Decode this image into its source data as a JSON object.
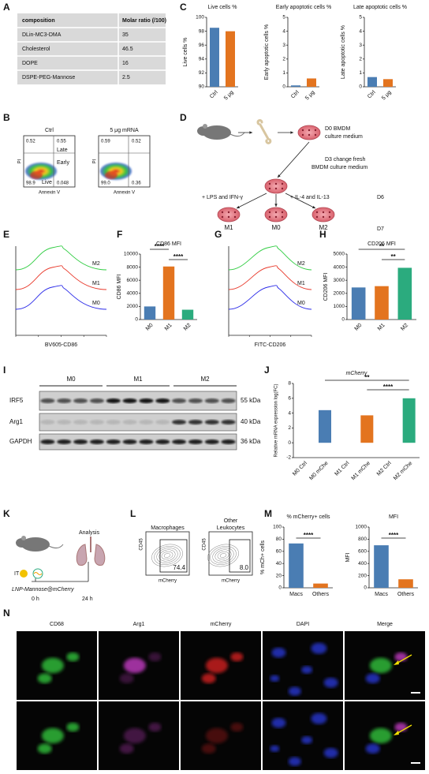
{
  "panel_labels": [
    "A",
    "B",
    "C",
    "D",
    "E",
    "F",
    "G",
    "H",
    "I",
    "J",
    "K",
    "L",
    "M",
    "N"
  ],
  "table": {
    "header": [
      "composition",
      "Molar ratio (/100)"
    ],
    "rows": [
      [
        "DLin-MC3-DMA",
        "35"
      ],
      [
        "Cholesterol",
        "46.5"
      ],
      [
        "DOPE",
        "16"
      ],
      [
        "DSPE-PEG-Mannose",
        "2.5"
      ]
    ]
  },
  "flow_b": {
    "titles": [
      "Ctrl",
      "5 μg mRNA"
    ],
    "quadrants": [
      [
        "0.52",
        "0.55",
        "98.9",
        "0.048"
      ],
      [
        "0.59",
        "0.52",
        "99.0",
        "0.36"
      ]
    ],
    "gates": [
      "Late",
      "Early",
      "Live"
    ],
    "y_axis": "PI",
    "x_axis": "Annexin V"
  },
  "diagram_d": {
    "step_d0": [
      "D0 BMDM",
      "culture medium"
    ],
    "step_d3": [
      "D3 change fresh",
      "BMDM culture medium"
    ],
    "treatments": [
      "+ LPS and IFN-γ",
      "+ IL-4 and IL-13"
    ],
    "days": [
      "D6",
      "D7"
    ],
    "groups": [
      "M1",
      "M0",
      "M2"
    ]
  },
  "histograms": [
    {
      "x_axis": "BV605-CD86",
      "labels": [
        "M2",
        "M1",
        "M0"
      ]
    },
    {
      "x_axis": "FITC-CD206",
      "labels": [
        "M2",
        "M1",
        "M0"
      ]
    }
  ],
  "blot": {
    "groups": [
      "M0",
      "M1",
      "M2"
    ],
    "proteins": [
      "IRF5",
      "Arg1",
      "GAPDH"
    ],
    "sizes": [
      "55 kDa",
      "40 kDa",
      "36 kDa"
    ]
  },
  "schematic_k": {
    "route": "IT",
    "endpoint": "Analysis",
    "agent": "LNP-Mannose@mCherry",
    "times": [
      "0 h",
      "24 h"
    ]
  },
  "flow_l": {
    "plots": [
      {
        "title": [
          "Macrophages"
        ],
        "gate": "74.4"
      },
      {
        "title": [
          "Other",
          "Leukocytes"
        ],
        "gate": "8.0"
      }
    ],
    "y_axis": "CD45",
    "x_axis": "mCherry"
  },
  "microscopy_n": {
    "channels": [
      "CD68",
      "Arg1",
      "mCherry",
      "DAPI",
      "Merge"
    ]
  },
  "chart_data": [
    {
      "type": "bar",
      "title": "Live cells %",
      "ylabel": "Live cells %",
      "categories": [
        "Ctrl",
        "5 μg"
      ],
      "values": [
        98.5,
        98
      ],
      "colors": [
        "#4a7db3",
        "#e3741f"
      ],
      "ylim": [
        90,
        100
      ],
      "yticks": [
        90,
        92,
        94,
        96,
        98,
        100
      ]
    },
    {
      "type": "bar",
      "title": "Early apoptotic cells %",
      "ylabel": "Early apoptotic cells %",
      "categories": [
        "Ctrl",
        "5 μg"
      ],
      "values": [
        0.1,
        0.6
      ],
      "colors": [
        "#4a7db3",
        "#e3741f"
      ],
      "ylim": [
        0,
        5
      ],
      "yticks": [
        0,
        1,
        2,
        3,
        4,
        5
      ]
    },
    {
      "type": "bar",
      "title": "Late apoptotic cells %",
      "ylabel": "Late apoptotic cells %",
      "categories": [
        "Ctrl",
        "5 μg"
      ],
      "values": [
        0.7,
        0.55
      ],
      "colors": [
        "#4a7db3",
        "#e3741f"
      ],
      "ylim": [
        0,
        5
      ],
      "yticks": [
        0,
        1,
        2,
        3,
        4,
        5
      ]
    },
    {
      "type": "bar",
      "title": "CD86 MFI",
      "ylabel": "CD86 MFI",
      "categories": [
        "M0",
        "M1",
        "M2"
      ],
      "values": [
        2000,
        8100,
        1500
      ],
      "colors": [
        "#4a7db3",
        "#e3741f",
        "#2bab7e"
      ],
      "ylim": [
        0,
        10000
      ],
      "yticks": [
        0,
        2000,
        4000,
        6000,
        8000,
        10000
      ],
      "annotations": [
        "****",
        "****"
      ]
    },
    {
      "type": "bar",
      "title": "CD206 MFI",
      "ylabel": "CD206 MFI",
      "categories": [
        "M0",
        "M1",
        "M2"
      ],
      "values": [
        2450,
        2550,
        3950
      ],
      "colors": [
        "#4a7db3",
        "#e3741f",
        "#2bab7e"
      ],
      "ylim": [
        0,
        5000
      ],
      "yticks": [
        0,
        1000,
        2000,
        3000,
        4000,
        5000
      ],
      "annotations": [
        "**",
        "**"
      ]
    },
    {
      "type": "bar",
      "title": "mCherry",
      "ylabel": "Relative mRNA expression log(FC)",
      "categories": [
        "M0 Ctrl",
        "M0 mChe",
        "M1 Ctrl",
        "M1 mChe",
        "M2 Ctrl",
        "M2 mChe"
      ],
      "values": [
        0,
        4.4,
        0,
        3.7,
        0,
        6
      ],
      "colors": [
        "#4a7db3",
        "#4a7db3",
        "#e3741f",
        "#e3741f",
        "#2bab7e",
        "#2bab7e"
      ],
      "ylim": [
        -2,
        8
      ],
      "yticks": [
        -2,
        0,
        2,
        4,
        6,
        8
      ],
      "annotations": [
        "**",
        "****"
      ]
    },
    {
      "type": "bar",
      "title": "% mCherry+ cells",
      "ylabel": "% mCh+ cells",
      "categories": [
        "Macs",
        "Others"
      ],
      "values": [
        73,
        7
      ],
      "colors": [
        "#4a7db3",
        "#e3741f"
      ],
      "ylim": [
        0,
        100
      ],
      "yticks": [
        0,
        20,
        40,
        60,
        80,
        100
      ],
      "annotations": [
        "****"
      ]
    },
    {
      "type": "bar",
      "title": "MFI",
      "ylabel": "MFI",
      "categories": [
        "Macs",
        "Others"
      ],
      "values": [
        700,
        140
      ],
      "colors": [
        "#4a7db3",
        "#e3741f"
      ],
      "ylim": [
        0,
        1000
      ],
      "yticks": [
        0,
        200,
        400,
        600,
        800,
        1000
      ],
      "annotations": [
        "****"
      ]
    }
  ]
}
